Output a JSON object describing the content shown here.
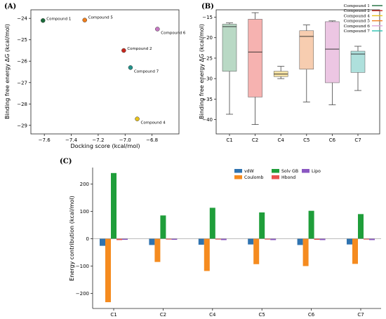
{
  "panel_labels": {
    "a": "(A)",
    "b": "(B)",
    "c": "(C)"
  },
  "chart_data": [
    {
      "id": "A",
      "type": "scatter",
      "xlabel": "Docking score (kcal/mol)",
      "ylabel": "Binding free energy ΔG (kcal/mol)",
      "xlim": [
        -7.7,
        -6.6
      ],
      "ylim": [
        -29.4,
        -23.6
      ],
      "xticks": [
        -7.6,
        -7.4,
        -7.2,
        -7.0,
        -6.8
      ],
      "yticks": [
        -24,
        -25,
        -26,
        -27,
        -28,
        -29
      ],
      "points": [
        {
          "label": "Compound 1",
          "x": -7.61,
          "y": -24.1,
          "color": "#1b6b3a"
        },
        {
          "label": "Compound 5",
          "x": -7.3,
          "y": -24.08,
          "color": "#f07d1a"
        },
        {
          "label": "Compound 6",
          "x": -6.76,
          "y": -24.5,
          "color": "#c678c2"
        },
        {
          "label": "Compound 2",
          "x": -7.01,
          "y": -25.5,
          "color": "#c8281e"
        },
        {
          "label": "Compound 7",
          "x": -6.96,
          "y": -26.3,
          "color": "#22928a"
        },
        {
          "label": "Compound 4",
          "x": -6.91,
          "y": -28.7,
          "color": "#e8c21a"
        }
      ]
    },
    {
      "id": "B",
      "type": "box",
      "ylabel": "Binding free energy ΔG (kcal/mol)",
      "ylim": [
        -43.5,
        -13.2
      ],
      "yticks": [
        -15,
        -20,
        -25,
        -30,
        -35,
        -40
      ],
      "categories": [
        "C1",
        "C2",
        "C4",
        "C5",
        "C6",
        "C7"
      ],
      "boxes": [
        {
          "name": "C1",
          "min": -38.7,
          "q1": -28.2,
          "median": -17.3,
          "q3": -16.7,
          "max": -16.4,
          "color": "#b9d9c5"
        },
        {
          "name": "C2",
          "min": -41.2,
          "q1": -34.5,
          "median": -23.5,
          "q3": -15.5,
          "max": -13.9,
          "color": "#f6b2b0"
        },
        {
          "name": "C4",
          "min": -30.0,
          "q1": -29.5,
          "median": -28.9,
          "q3": -28.2,
          "max": -27.0,
          "color": "#f6e2a4"
        },
        {
          "name": "C5",
          "min": -35.7,
          "q1": -27.7,
          "median": -19.7,
          "q3": -18.3,
          "max": -16.9,
          "color": "#f7cdb0"
        },
        {
          "name": "C6",
          "min": -36.4,
          "q1": -31.0,
          "median": -22.8,
          "q3": -16.1,
          "max": -15.9,
          "color": "#ecc6e3"
        },
        {
          "name": "C7",
          "min": -32.9,
          "q1": -28.5,
          "median": -24.0,
          "q3": -23.3,
          "max": -22.1,
          "color": "#aee0dc"
        }
      ],
      "legend_position": "top-right",
      "legend": [
        {
          "label": "Compound 1",
          "color": "#1b6b3a"
        },
        {
          "label": "Compound 2",
          "color": "#c8281e"
        },
        {
          "label": "Compound 4",
          "color": "#e8c21a"
        },
        {
          "label": "Compound 5",
          "color": "#f07d1a"
        },
        {
          "label": "Compound 6",
          "color": "#e0a5d8"
        },
        {
          "label": "Compound 7",
          "color": "#2bc2b0"
        }
      ]
    },
    {
      "id": "C",
      "type": "bar",
      "ylabel": "Energy contribution (kcal/mol)",
      "ylim": [
        -255,
        260
      ],
      "yticks": [
        200,
        100,
        0,
        -100,
        -200
      ],
      "categories": [
        "C1",
        "C2",
        "C4",
        "C5",
        "C6",
        "C7"
      ],
      "legend_position": "top-right",
      "series": [
        {
          "name": "vdW",
          "color": "#2f73b0",
          "values": [
            -26,
            -23,
            -22,
            -21,
            -23,
            -21
          ]
        },
        {
          "name": "Coulomb",
          "color": "#f58b1f",
          "values": [
            -232,
            -85,
            -118,
            -93,
            -100,
            -92
          ]
        },
        {
          "name": "Solv GB",
          "color": "#1f9e3a",
          "values": [
            240,
            85,
            113,
            96,
            102,
            90
          ]
        },
        {
          "name": "Hbond",
          "color": "#e8524f",
          "values": [
            -5,
            -3,
            -3,
            -3,
            -4,
            -3
          ]
        },
        {
          "name": "Lipo",
          "color": "#8a57c2",
          "values": [
            -4,
            -4,
            -5,
            -5,
            -5,
            -5
          ]
        }
      ]
    }
  ]
}
